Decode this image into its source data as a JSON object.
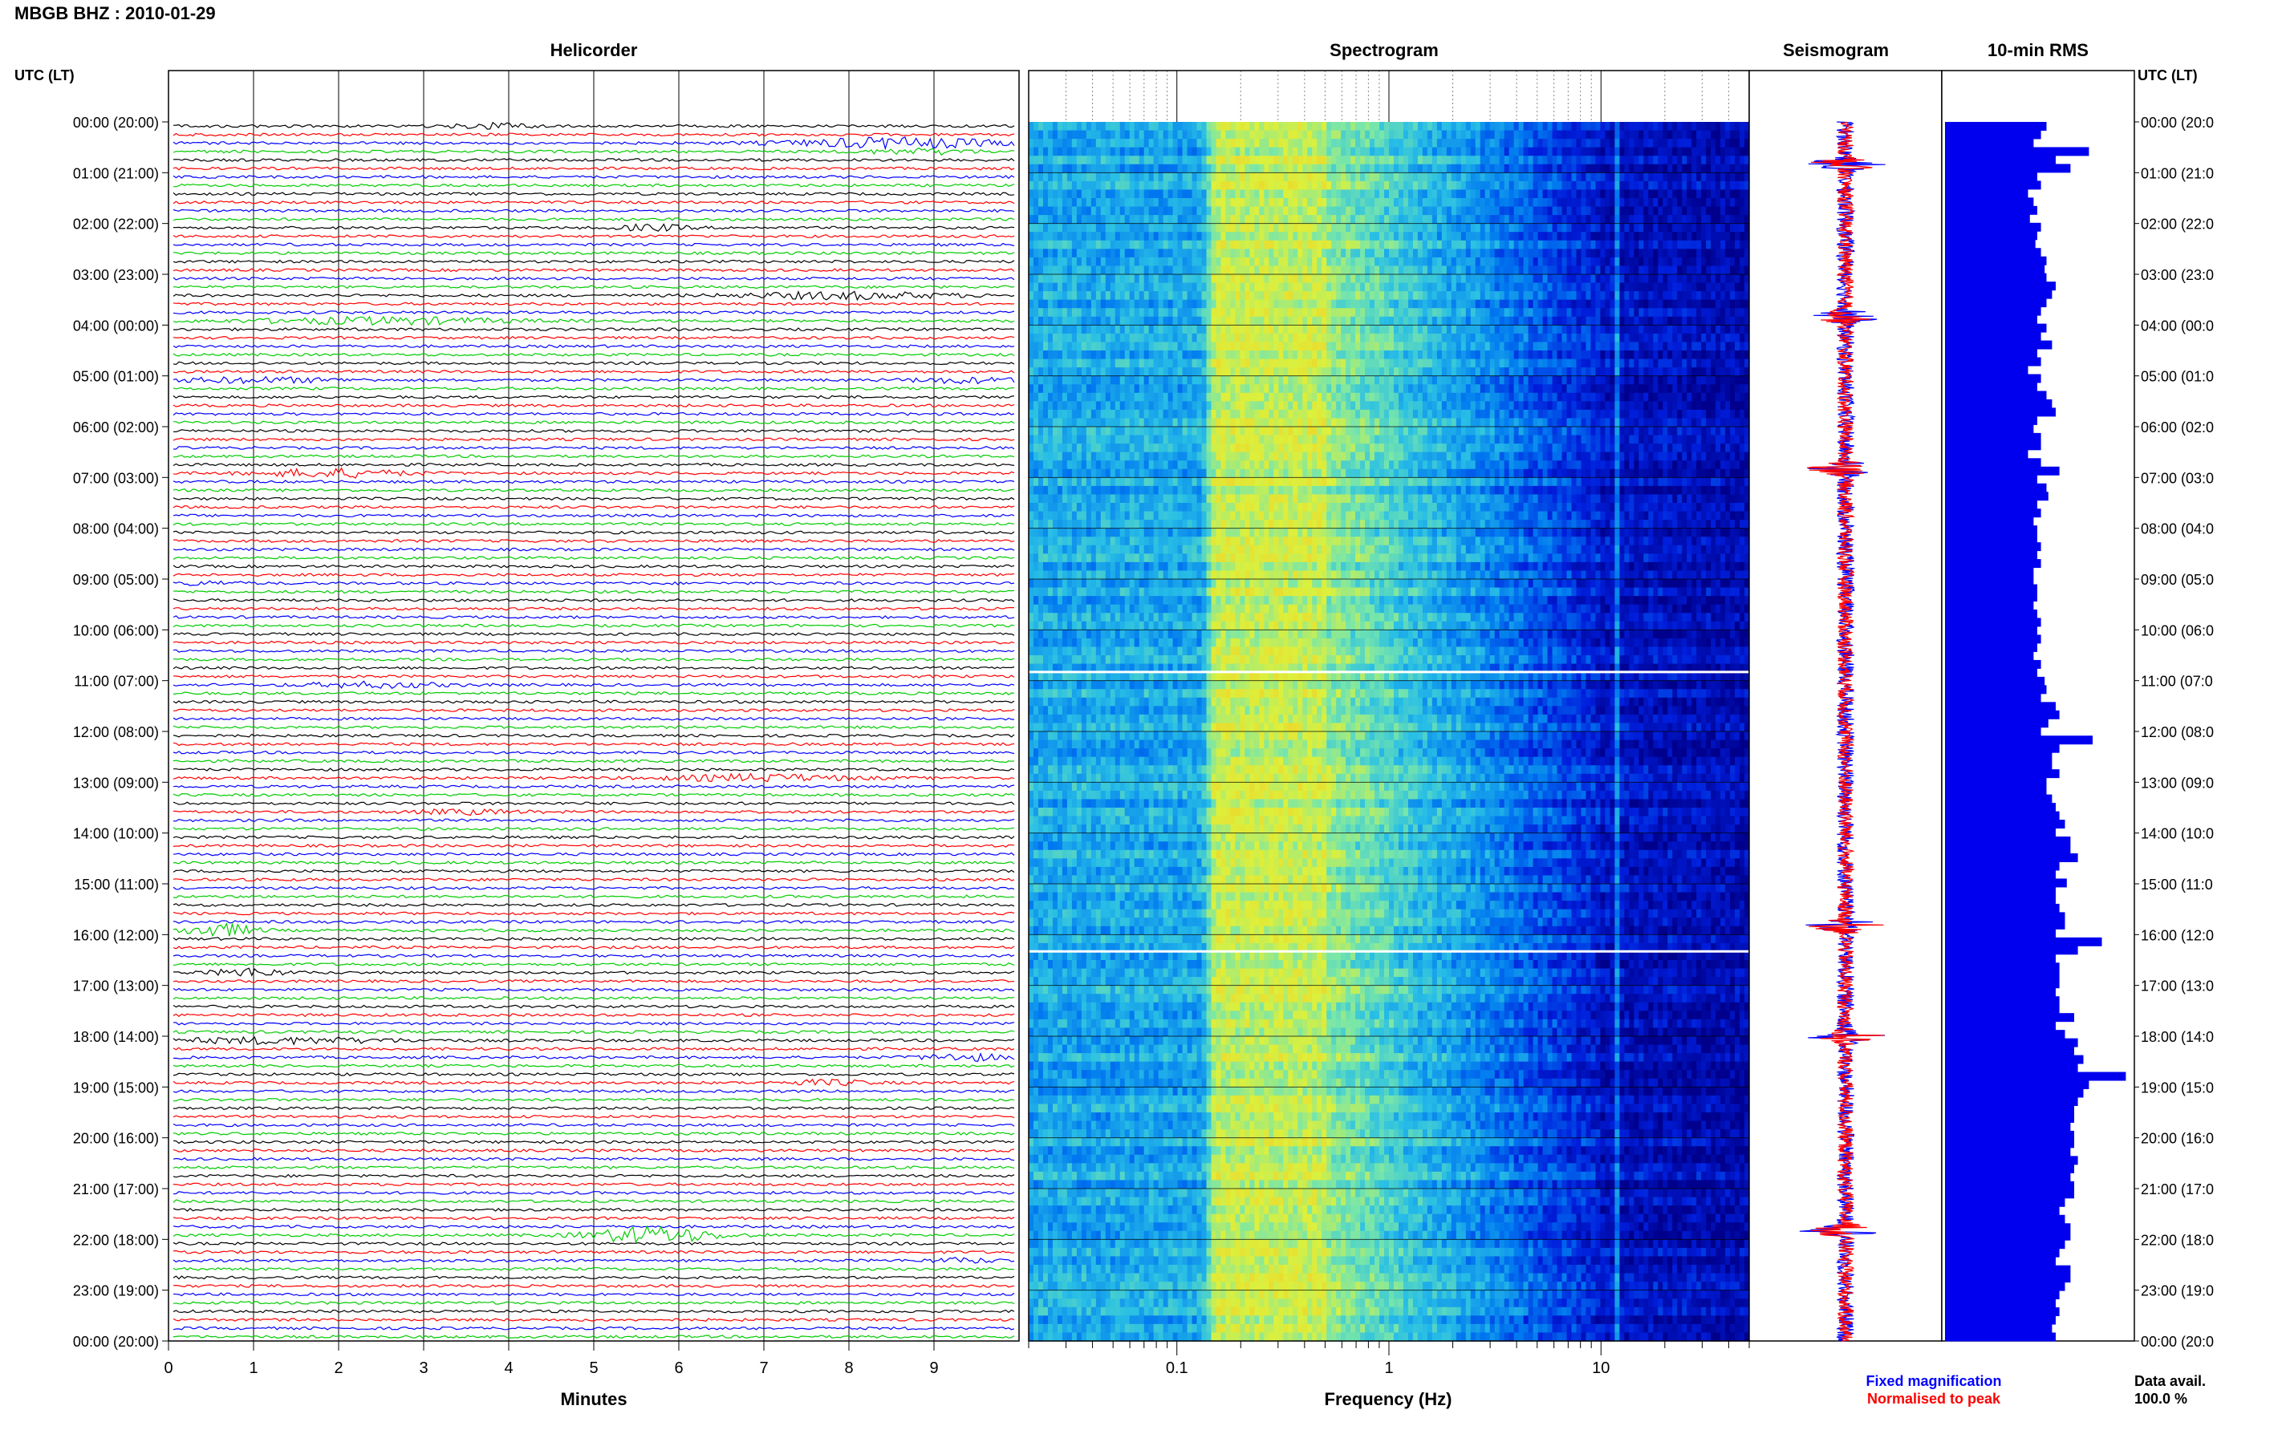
{
  "title": "MBGB BHZ : 2010-01-29",
  "panels": {
    "helicorder": "Helicorder",
    "spectrogram": "Spectrogram",
    "seismogram": "Seismogram",
    "rms": "10-min RMS"
  },
  "axis_header": "UTC (LT)",
  "time_labels_left": [
    "00:00 (20:00)",
    "01:00 (21:00)",
    "02:00 (22:00)",
    "03:00 (23:00)",
    "04:00 (00:00)",
    "05:00 (01:00)",
    "06:00 (02:00)",
    "07:00 (03:00)",
    "08:00 (04:00)",
    "09:00 (05:00)",
    "10:00 (06:00)",
    "11:00 (07:00)",
    "12:00 (08:00)",
    "13:00 (09:00)",
    "14:00 (10:00)",
    "15:00 (11:00)",
    "16:00 (12:00)",
    "17:00 (13:00)",
    "18:00 (14:00)",
    "19:00 (15:00)",
    "20:00 (16:00)",
    "21:00 (17:00)",
    "22:00 (18:00)",
    "23:00 (19:00)",
    "00:00 (20:00)"
  ],
  "time_labels_right": [
    "00:00 (20:0",
    "01:00 (21:0",
    "02:00 (22:0",
    "03:00 (23:0",
    "04:00 (00:0",
    "05:00 (01:0",
    "06:00 (02:0",
    "07:00 (03:0",
    "08:00 (04:0",
    "09:00 (05:0",
    "10:00 (06:0",
    "11:00 (07:0",
    "12:00 (08:0",
    "13:00 (09:0",
    "14:00 (10:0",
    "15:00 (11:0",
    "16:00 (12:0",
    "17:00 (13:0",
    "18:00 (14:0",
    "19:00 (15:0",
    "20:00 (16:0",
    "21:00 (17:0",
    "22:00 (18:0",
    "23:00 (19:0",
    "00:00 (20:0"
  ],
  "legend": {
    "fixed": "Fixed magnification",
    "normalised": "Normalised to peak",
    "fixed_color": "#0000ff",
    "normalised_color": "#ff0000"
  },
  "data_avail": {
    "label": "Data avail.",
    "value": "100.0 %"
  },
  "trace_colors": [
    "#000000",
    "#ff0000",
    "#0000ff",
    "#00cc00"
  ],
  "chart_data": [
    {
      "type": "line",
      "name": "helicorder",
      "title": "Helicorder",
      "xlabel": "Minutes",
      "ylabel": "UTC (LT)",
      "x_ticks": [
        "0",
        "1",
        "2",
        "3",
        "4",
        "5",
        "6",
        "7",
        "8",
        "9"
      ],
      "xlim": [
        0,
        10
      ],
      "ylim_hours": [
        0,
        24
      ],
      "lines_per_hour": 6,
      "events": [
        {
          "hour": 0.0,
          "minute": 3.8,
          "amp": 3.0,
          "width": 0.6
        },
        {
          "hour": 0.33,
          "minute": 8.6,
          "amp": 6.0,
          "width": 1.5
        },
        {
          "hour": 0.5,
          "minute": 8.9,
          "amp": 3.0,
          "width": 0.8
        },
        {
          "hour": 2.0,
          "minute": 5.7,
          "amp": 3.5,
          "width": 0.5
        },
        {
          "hour": 3.33,
          "minute": 8.0,
          "amp": 4.0,
          "width": 1.5
        },
        {
          "hour": 3.83,
          "minute": 2.5,
          "amp": 4.0,
          "width": 1.8
        },
        {
          "hour": 5.0,
          "minute": 1.0,
          "amp": 3.0,
          "width": 1.2
        },
        {
          "hour": 5.0,
          "minute": 9.4,
          "amp": 3.0,
          "width": 0.8
        },
        {
          "hour": 6.83,
          "minute": 1.9,
          "amp": 5.0,
          "width": 1.0
        },
        {
          "hour": 9.0,
          "minute": 0.4,
          "amp": 2.0,
          "width": 0.5
        },
        {
          "hour": 11.0,
          "minute": 2.4,
          "amp": 3.0,
          "width": 1.0
        },
        {
          "hour": 12.83,
          "minute": 7.0,
          "amp": 4.0,
          "width": 1.3
        },
        {
          "hour": 13.5,
          "minute": 3.5,
          "amp": 2.5,
          "width": 0.8
        },
        {
          "hour": 15.83,
          "minute": 0.55,
          "amp": 8.0,
          "width": 0.5
        },
        {
          "hour": 16.66,
          "minute": 0.9,
          "amp": 5.0,
          "width": 0.5
        },
        {
          "hour": 18.0,
          "minute": 1.3,
          "amp": 3.5,
          "width": 1.6
        },
        {
          "hour": 18.33,
          "minute": 9.4,
          "amp": 4.0,
          "width": 0.6
        },
        {
          "hour": 18.83,
          "minute": 7.8,
          "amp": 3.0,
          "width": 0.6
        },
        {
          "hour": 21.83,
          "minute": 5.7,
          "amp": 10.0,
          "width": 0.9
        },
        {
          "hour": 22.33,
          "minute": 9.4,
          "amp": 2.5,
          "width": 0.5
        }
      ]
    },
    {
      "type": "heatmap",
      "name": "spectrogram",
      "title": "Spectrogram",
      "xlabel": "Frequency (Hz)",
      "x_scale": "log",
      "xlim": [
        0.02,
        50
      ],
      "x_tick_labels": [
        "0.1",
        "1",
        "10"
      ],
      "ylim_hours": [
        0,
        24
      ],
      "gaps_hours": [
        10.83,
        16.33
      ]
    },
    {
      "type": "line",
      "name": "seismogram",
      "title": "Seismogram",
      "orientation": "vertical",
      "spikes_hours": [
        0.83,
        3.83,
        6.83,
        15.83,
        18.0,
        21.83
      ]
    },
    {
      "type": "bar",
      "name": "rms",
      "title": "10-min RMS",
      "orientation": "horizontal",
      "units": "relative",
      "values": [
        0.55,
        0.52,
        0.48,
        0.78,
        0.6,
        0.68,
        0.5,
        0.52,
        0.45,
        0.48,
        0.5,
        0.46,
        0.52,
        0.5,
        0.49,
        0.52,
        0.55,
        0.54,
        0.55,
        0.6,
        0.58,
        0.55,
        0.52,
        0.5,
        0.55,
        0.52,
        0.58,
        0.5,
        0.52,
        0.45,
        0.52,
        0.5,
        0.55,
        0.58,
        0.6,
        0.5,
        0.48,
        0.52,
        0.52,
        0.45,
        0.52,
        0.62,
        0.5,
        0.55,
        0.56,
        0.5,
        0.52,
        0.48,
        0.5,
        0.5,
        0.52,
        0.5,
        0.52,
        0.48,
        0.48,
        0.5,
        0.5,
        0.48,
        0.5,
        0.52,
        0.5,
        0.52,
        0.5,
        0.48,
        0.52,
        0.5,
        0.54,
        0.55,
        0.52,
        0.6,
        0.62,
        0.56,
        0.52,
        0.8,
        0.62,
        0.58,
        0.58,
        0.62,
        0.55,
        0.55,
        0.58,
        0.6,
        0.62,
        0.65,
        0.6,
        0.68,
        0.68,
        0.72,
        0.62,
        0.6,
        0.66,
        0.6,
        0.6,
        0.62,
        0.65,
        0.65,
        0.6,
        0.85,
        0.72,
        0.6,
        0.62,
        0.62,
        0.62,
        0.6,
        0.62,
        0.62,
        0.7,
        0.6,
        0.65,
        0.72,
        0.7,
        0.75,
        0.72,
        0.98,
        0.78,
        0.75,
        0.72,
        0.7,
        0.7,
        0.68,
        0.7,
        0.7,
        0.68,
        0.72,
        0.7,
        0.68,
        0.7,
        0.7,
        0.65,
        0.62,
        0.65,
        0.68,
        0.68,
        0.65,
        0.62,
        0.6,
        0.68,
        0.68,
        0.65,
        0.62,
        0.6,
        0.62,
        0.6,
        0.58,
        0.6
      ]
    }
  ]
}
